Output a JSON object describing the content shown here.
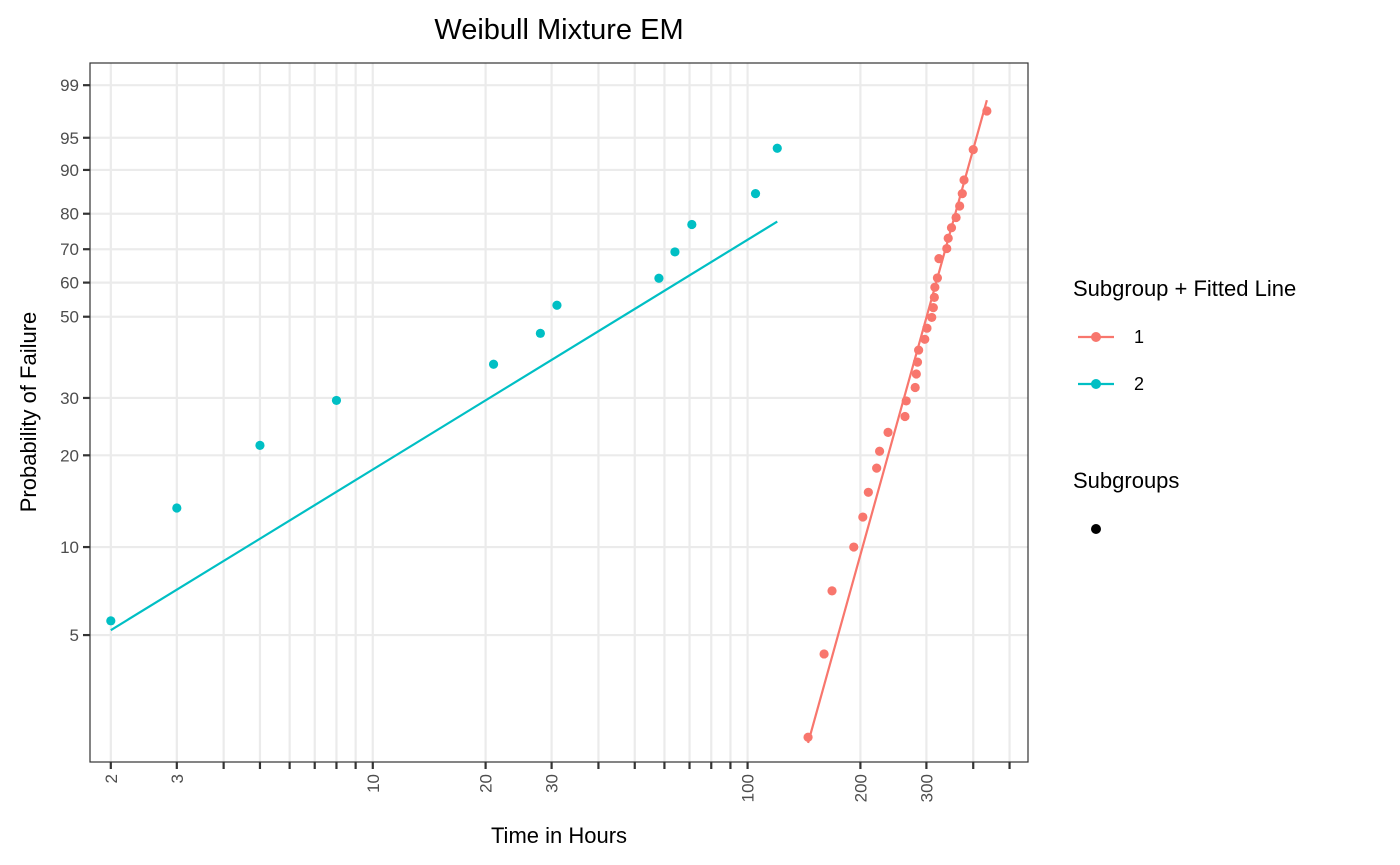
{
  "chart_data": {
    "type": "scatter",
    "title": "Weibull Mixture EM",
    "xlabel": "Time in Hours",
    "ylabel": "Probability of Failure",
    "x_scale": "log",
    "y_scale": "weibull",
    "xlim": [
      1.76,
      560
    ],
    "ylim": [
      1.8,
      99.6
    ],
    "grid": true,
    "x_ticks_labeled": [
      2,
      3,
      10,
      20,
      30,
      100,
      200,
      300
    ],
    "x_ticks_minor": [
      4,
      5,
      6,
      7,
      8,
      9,
      40,
      50,
      60,
      70,
      80,
      90,
      400,
      500
    ],
    "y_ticks": [
      5,
      10,
      20,
      30,
      50,
      60,
      70,
      80,
      90,
      95,
      99
    ],
    "legend_position": "right",
    "legends": [
      {
        "title": "Subgroup + Fitted Line",
        "entries": [
          {
            "label": "1",
            "color": "#F8766D"
          },
          {
            "label": "2",
            "color": "#00BFC4"
          }
        ]
      },
      {
        "title": "Subgroups",
        "entries": [
          {
            "label": "",
            "color": "#000000"
          }
        ]
      }
    ],
    "series": [
      {
        "name": "1",
        "color": "#F8766D",
        "points": [
          [
            145,
            2.2
          ],
          [
            160,
            4.3
          ],
          [
            168,
            7.1
          ],
          [
            192,
            10.0
          ],
          [
            203,
            12.6
          ],
          [
            210,
            15.2
          ],
          [
            221,
            18.2
          ],
          [
            225,
            20.6
          ],
          [
            237,
            23.6
          ],
          [
            263,
            26.4
          ],
          [
            265,
            29.4
          ],
          [
            280,
            32.2
          ],
          [
            282,
            35.2
          ],
          [
            284,
            38.0
          ],
          [
            286,
            41.0
          ],
          [
            297,
            43.8
          ],
          [
            301,
            46.8
          ],
          [
            310,
            49.8
          ],
          [
            313,
            52.6
          ],
          [
            315,
            55.6
          ],
          [
            316,
            58.6
          ],
          [
            321,
            61.4
          ],
          [
            324,
            67.2
          ],
          [
            340,
            70.2
          ],
          [
            343,
            73.2
          ],
          [
            350,
            76.2
          ],
          [
            360,
            79.0
          ],
          [
            368,
            82.0
          ],
          [
            374,
            85.0
          ],
          [
            378,
            88.0
          ],
          [
            400,
            93.4
          ],
          [
            435,
            97.6
          ]
        ],
        "fit_line": [
          [
            145,
            2.1
          ],
          [
            435,
            98.3
          ]
        ]
      },
      {
        "name": "2",
        "color": "#00BFC4",
        "points": [
          [
            2,
            5.6
          ],
          [
            3,
            13.5
          ],
          [
            5,
            21.5
          ],
          [
            8,
            29.5
          ],
          [
            21,
            37.5
          ],
          [
            28,
            45.4
          ],
          [
            31,
            53.3
          ],
          [
            58,
            61.3
          ],
          [
            64,
            69.2
          ],
          [
            71,
            77.1
          ],
          [
            105,
            85.0
          ],
          [
            120,
            93.6
          ]
        ],
        "fit_line": [
          [
            2,
            5.2
          ],
          [
            120,
            77.9
          ]
        ]
      }
    ]
  }
}
